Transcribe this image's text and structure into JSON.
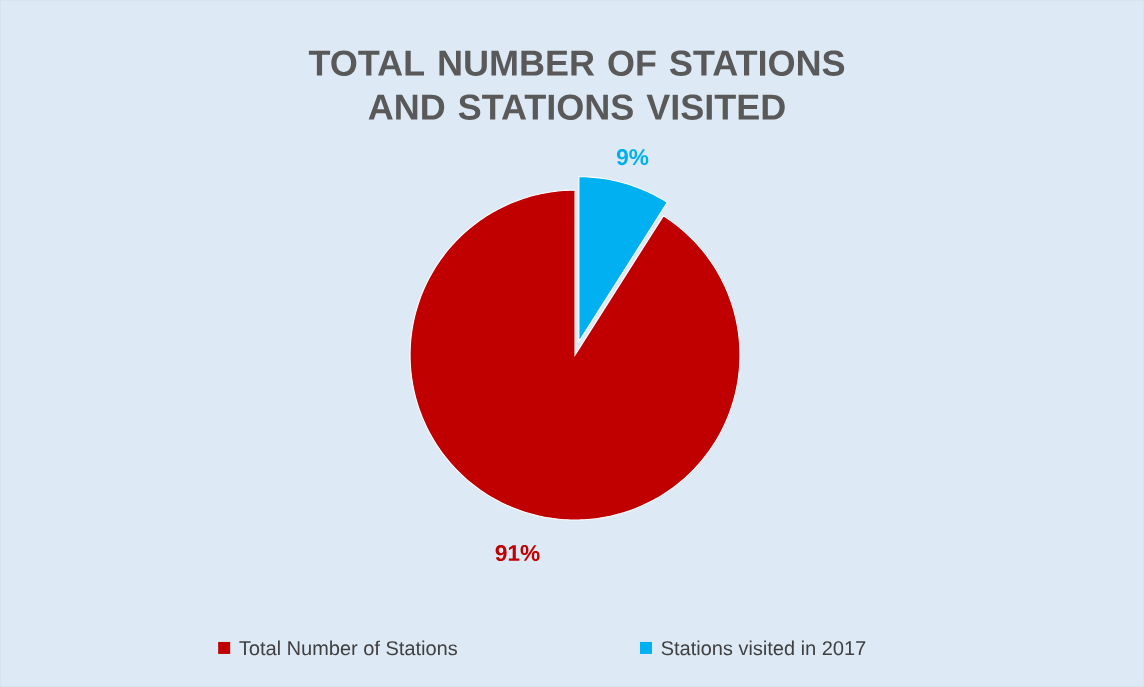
{
  "chart_data": {
    "type": "pie",
    "title": "TOTAL NUMBER OF STATIONS AND STATIONS VISITED",
    "categories": [
      "Total Number of Stations",
      "Stations visited in 2017"
    ],
    "values": [
      91,
      9
    ],
    "colors": [
      "#c00000",
      "#00b0f0"
    ],
    "value_labels": [
      "91%",
      "9%"
    ],
    "legend": "bottom"
  }
}
